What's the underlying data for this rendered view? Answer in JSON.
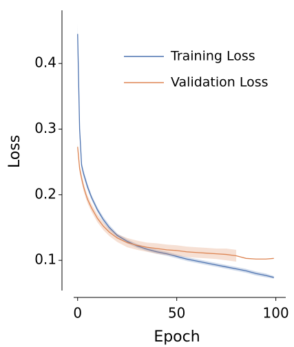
{
  "chart_data": {
    "type": "line",
    "x_label": "Epoch",
    "y_label": "Loss",
    "x": [
      0,
      1,
      2,
      3,
      4,
      5,
      7,
      10,
      13,
      16,
      20,
      25,
      30,
      35,
      40,
      45,
      50,
      55,
      60,
      65,
      70,
      75,
      80,
      85,
      90,
      95,
      99
    ],
    "series": [
      {
        "name": "Training Loss",
        "color": "#4c72b0",
        "values": [
          0.445,
          0.3,
          0.245,
          0.232,
          0.222,
          0.212,
          0.196,
          0.177,
          0.162,
          0.15,
          0.138,
          0.129,
          0.122,
          0.117,
          0.113,
          0.11,
          0.106,
          0.102,
          0.099,
          0.096,
          0.093,
          0.09,
          0.087,
          0.084,
          0.08,
          0.077,
          0.074
        ],
        "lower": [
          0.43,
          0.29,
          0.24,
          0.227,
          0.217,
          0.207,
          0.192,
          0.173,
          0.158,
          0.146,
          0.135,
          0.126,
          0.119,
          0.114,
          0.11,
          0.107,
          0.103,
          0.099,
          0.096,
          0.093,
          0.09,
          0.087,
          0.084,
          0.081,
          0.077,
          0.074,
          0.072
        ],
        "upper": [
          0.46,
          0.31,
          0.25,
          0.237,
          0.227,
          0.217,
          0.2,
          0.181,
          0.166,
          0.154,
          0.141,
          0.132,
          0.125,
          0.12,
          0.116,
          0.113,
          0.109,
          0.105,
          0.102,
          0.099,
          0.096,
          0.093,
          0.09,
          0.087,
          0.083,
          0.08,
          0.076
        ]
      },
      {
        "name": "Validation Loss",
        "color": "#dd8452",
        "values": [
          0.273,
          0.24,
          0.225,
          0.212,
          0.202,
          0.193,
          0.18,
          0.164,
          0.152,
          0.143,
          0.134,
          0.127,
          0.123,
          0.12,
          0.118,
          0.116,
          0.115,
          0.113,
          0.112,
          0.111,
          0.11,
          0.109,
          0.107,
          0.103,
          0.102,
          0.102,
          0.103
        ],
        "lower": [
          0.268,
          0.234,
          0.219,
          0.206,
          0.196,
          0.187,
          0.174,
          0.158,
          0.146,
          0.137,
          0.128,
          0.12,
          0.116,
          0.113,
          0.11,
          0.108,
          0.107,
          0.105,
          0.104,
          0.103,
          0.102,
          0.1,
          0.098,
          null,
          null,
          null,
          null
        ],
        "upper": [
          0.278,
          0.246,
          0.231,
          0.218,
          0.208,
          0.199,
          0.186,
          0.17,
          0.158,
          0.149,
          0.14,
          0.134,
          0.13,
          0.127,
          0.126,
          0.124,
          0.123,
          0.121,
          0.12,
          0.119,
          0.118,
          0.118,
          0.116,
          null,
          null,
          null,
          null
        ]
      }
    ],
    "xlim": [
      -2,
      105
    ],
    "ylim": [
      0.054,
      0.481
    ],
    "xticks": [
      0,
      50,
      100
    ],
    "yticks": [
      0.1,
      0.2,
      0.3,
      0.4
    ],
    "legend": "upper right",
    "grid": false
  }
}
